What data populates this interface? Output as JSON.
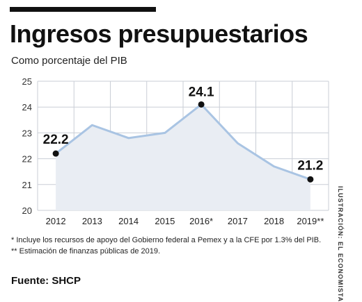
{
  "header": {
    "title": "Ingresos presupuestarios",
    "subtitle": "Como porcentaje del PIB"
  },
  "chart_data": {
    "type": "area",
    "title": "Ingresos presupuestarios",
    "subtitle": "Como porcentaje del PIB",
    "xlabel": "",
    "ylabel": "",
    "categories": [
      "2012",
      "2013",
      "2014",
      "2015",
      "2016*",
      "2017",
      "2018",
      "2019**"
    ],
    "series": [
      {
        "values": [
          22.2,
          23.3,
          22.8,
          23.0,
          24.1,
          22.6,
          21.7,
          21.2
        ]
      }
    ],
    "data_labels": [
      {
        "index": 0,
        "text": "22.2"
      },
      {
        "index": 4,
        "text": "24.1"
      },
      {
        "index": 7,
        "text": "21.2"
      }
    ],
    "ylim": [
      20,
      25
    ],
    "yticks": [
      20,
      21,
      22,
      23,
      24,
      25
    ],
    "grid": true,
    "colors": {
      "line": "#a9c4e3",
      "fill": "#e9edf3",
      "grid": "#c9ced6",
      "marker": "#111111"
    }
  },
  "notes": {
    "note1": "* Incluye los recursos de apoyo del Gobierno federal a Pemex y a la CFE por 1.3% del PIB.",
    "note2": "** Estimación de finanzas públicas de 2019."
  },
  "source": "Fuente: SHCP",
  "credit": "ILUSTRACIÓN: EL ECONOMISTA"
}
